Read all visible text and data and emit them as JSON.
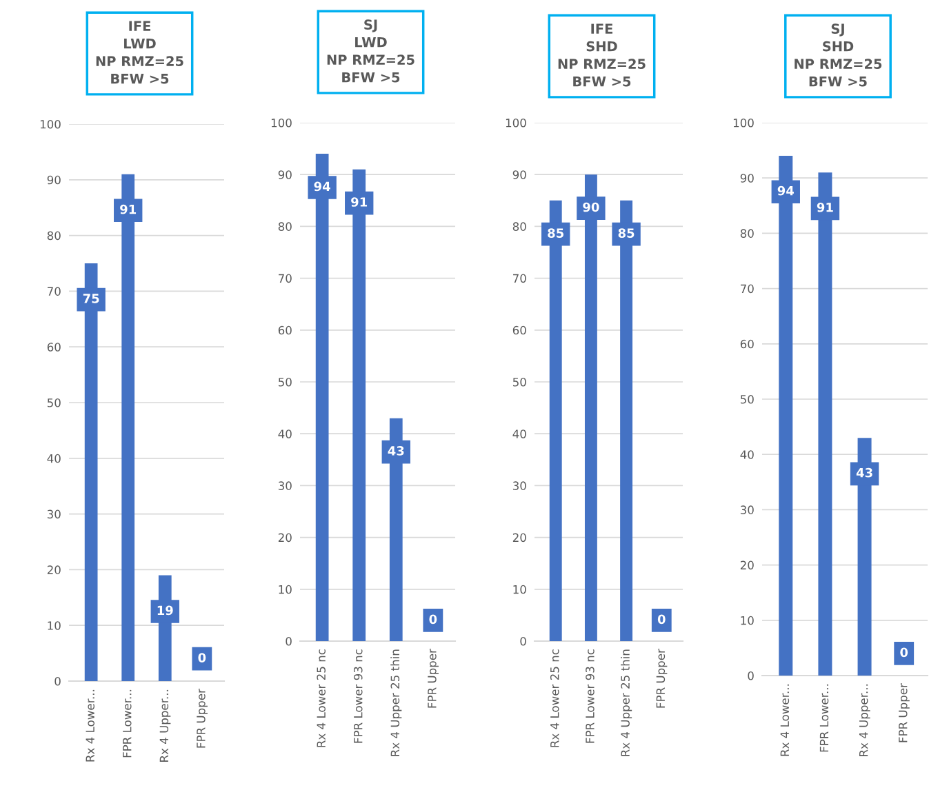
{
  "chart_data": [
    {
      "type": "bar",
      "title": "IFE\nLWD\nNP RMZ=25\nBFW >5",
      "categories": [
        "Rx 4 Lower...",
        "FPR Lower...",
        "Rx 4 Upper...",
        "FPR Upper"
      ],
      "values": [
        75,
        91,
        19,
        0
      ],
      "color": "#4472c4",
      "ylim": [
        0,
        100
      ],
      "yticks": [
        0,
        10,
        20,
        30,
        40,
        50,
        60,
        70,
        80,
        90,
        100
      ],
      "grid": "y",
      "data_labels": true
    },
    {
      "type": "bar",
      "title": "SJ\nLWD\nNP RMZ=25\nBFW >5",
      "categories": [
        "Rx 4 Lower 25 nc",
        "FPR Lower 93 nc",
        "Rx 4 Upper 25 thin",
        "FPR Upper"
      ],
      "values": [
        94,
        91,
        43,
        0
      ],
      "color": "#4472c4",
      "ylim": [
        0,
        100
      ],
      "yticks": [
        0,
        10,
        20,
        30,
        40,
        50,
        60,
        70,
        80,
        90,
        100
      ],
      "grid": "y",
      "data_labels": true
    },
    {
      "type": "bar",
      "title": "IFE\nSHD\nNP RMZ=25\nBFW >5",
      "categories": [
        "Rx 4 Lower 25 nc",
        "FPR Lower 93 nc",
        "Rx 4 Upper 25 thin",
        "FPR Upper"
      ],
      "values": [
        85,
        90,
        85,
        0
      ],
      "color": "#4472c4",
      "ylim": [
        0,
        100
      ],
      "yticks": [
        0,
        10,
        20,
        30,
        40,
        50,
        60,
        70,
        80,
        90,
        100
      ],
      "grid": "y",
      "data_labels": true
    },
    {
      "type": "bar",
      "title": "SJ\nSHD\nNP RMZ=25\nBFW >5",
      "categories": [
        "Rx 4 Lower...",
        "FPR Lower...",
        "Rx 4 Upper...",
        "FPR Upper"
      ],
      "values": [
        94,
        91,
        43,
        0
      ],
      "color": "#4472c4",
      "ylim": [
        0,
        100
      ],
      "yticks": [
        0,
        10,
        20,
        30,
        40,
        50,
        60,
        70,
        80,
        90,
        100
      ],
      "grid": "y",
      "data_labels": true
    }
  ]
}
